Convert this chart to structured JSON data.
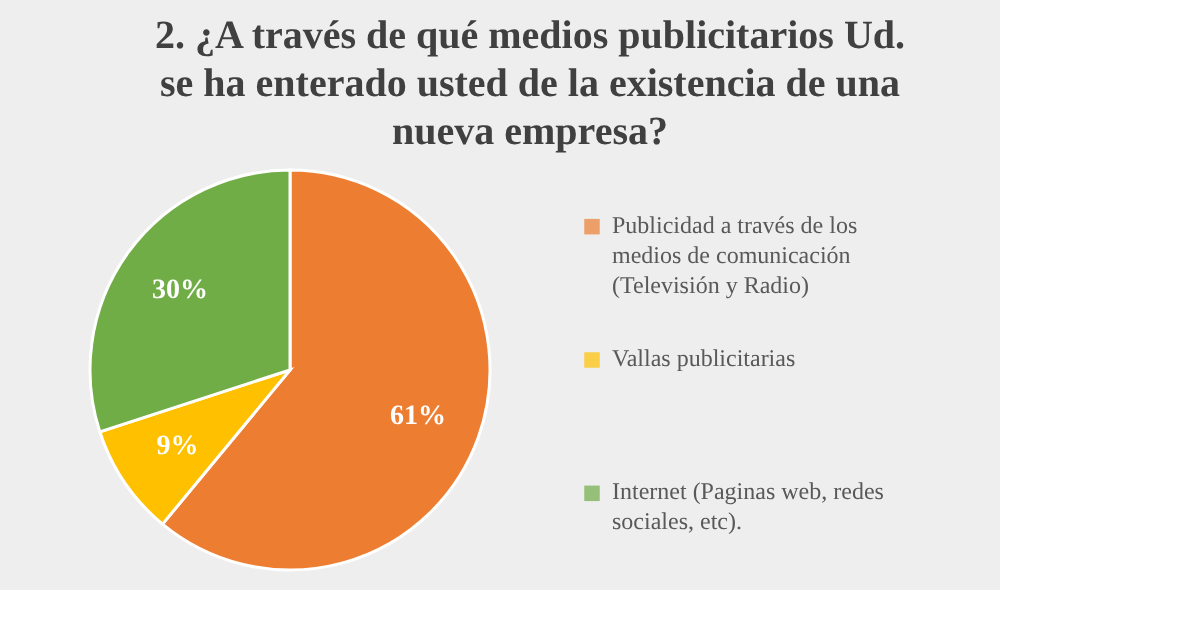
{
  "chart_data": {
    "type": "pie",
    "title": "2. ¿A través de qué medios publicitarios Ud. se ha enterado usted de la existencia de una nueva empresa?",
    "categories": [
      "Publicidad a través de los medios de comunicación (Televisión y Radio)",
      "Vallas publicitarias",
      "Internet (Paginas web, redes sociales, etc)."
    ],
    "values": [
      61,
      9,
      30
    ],
    "colors": [
      "#ed7d31",
      "#ffc000",
      "#70ad47"
    ],
    "value_labels": [
      "61%",
      "9%",
      "30%"
    ],
    "legend": "right"
  }
}
